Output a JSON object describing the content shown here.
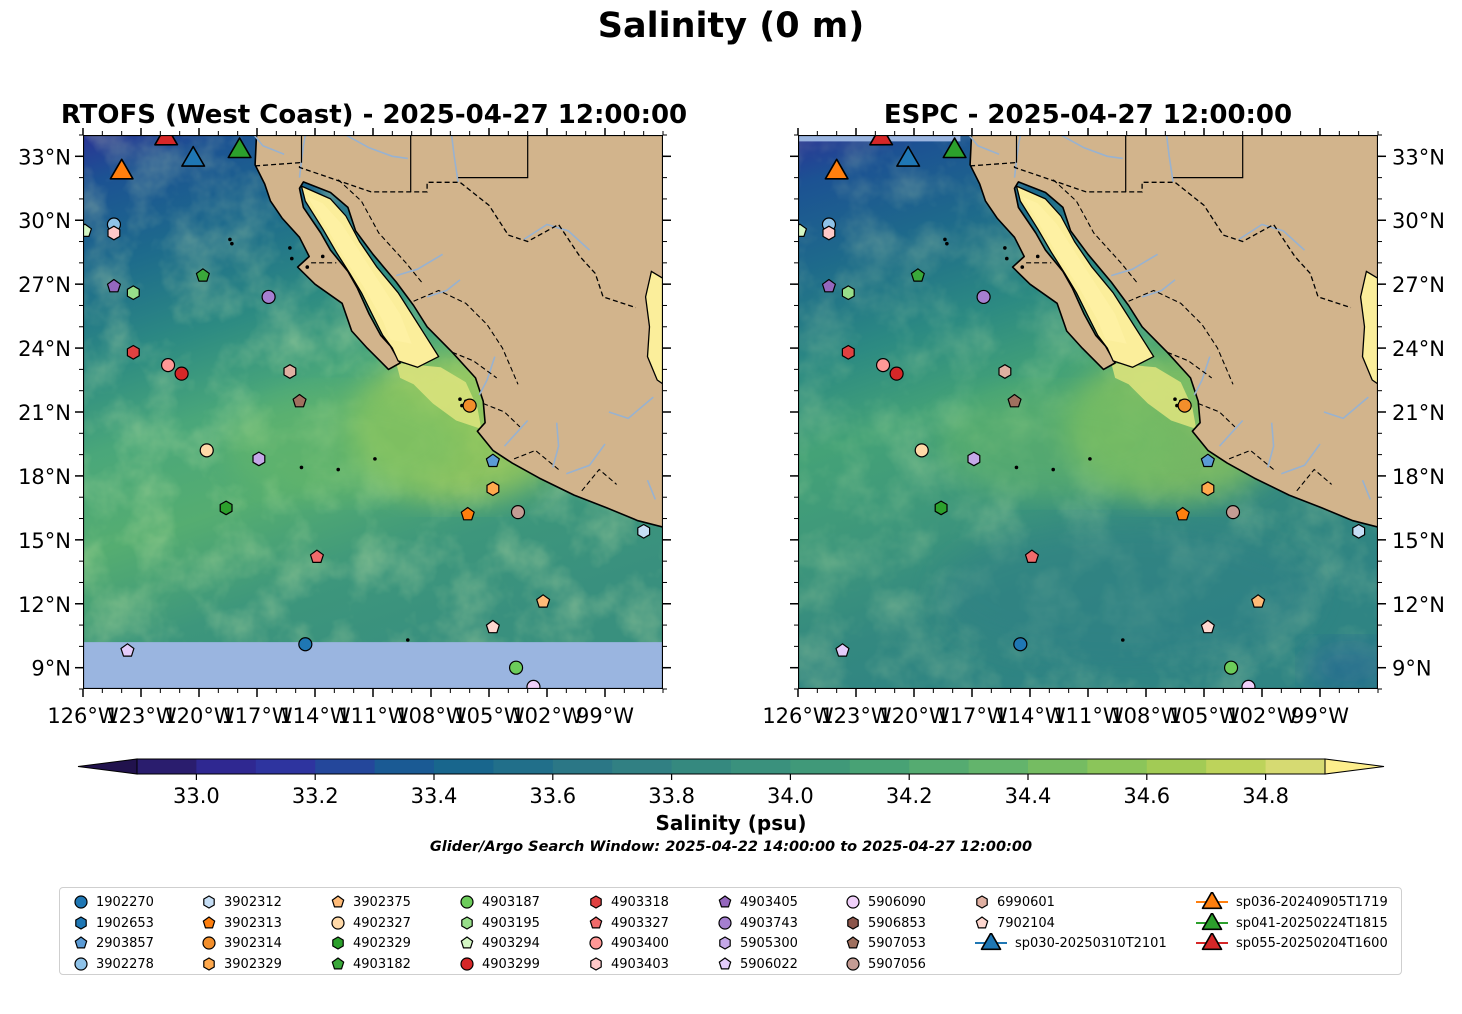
{
  "title": "Salinity (0 m)",
  "panels": [
    {
      "title": "RTOFS (West Coast) - 2025-04-27 12:00:00",
      "lat_axis_side": "left"
    },
    {
      "title": "ESPC - 2025-04-27 12:00:00",
      "lat_axis_side": "right"
    }
  ],
  "map_extent": {
    "lon": [
      -126,
      -96
    ],
    "lat": [
      8,
      34
    ]
  },
  "lon_ticks": [
    "126°W",
    "123°W",
    "120°W",
    "117°W",
    "114°W",
    "111°W",
    "108°W",
    "105°W",
    "102°W",
    "99°W"
  ],
  "lat_ticks": [
    "33°N",
    "30°N",
    "27°N",
    "24°N",
    "21°N",
    "18°N",
    "15°N",
    "12°N",
    "9°N"
  ],
  "colors": {
    "land": "#d2b48c",
    "no_data": "#9ab5e0",
    "gulf_fresh": "#fbee9b",
    "boundary": "#000000"
  },
  "colorbar": {
    "label": "Salinity (psu)",
    "range": [
      32.9,
      34.9
    ],
    "extend": "both",
    "ticks": [
      "33.0",
      "33.2",
      "33.4",
      "33.6",
      "33.8",
      "34.0",
      "34.2",
      "34.4",
      "34.6",
      "34.8"
    ],
    "colors": [
      "#2a1d6e",
      "#2f2891",
      "#2e349f",
      "#24479b",
      "#1a5a94",
      "#18668d",
      "#216f8a",
      "#2b7786",
      "#318083",
      "#35897f",
      "#3a917d",
      "#409979",
      "#48a275",
      "#55ab71",
      "#63b46c",
      "#75bc62",
      "#8bc55a",
      "#a2cb55",
      "#bdd35b",
      "#d6da72"
    ]
  },
  "search_window": "Glider/Argo Search Window: 2025-04-22 14:00:00 to 2025-04-27 12:00:00",
  "platforms": [
    {
      "id": "1902270",
      "marker": "circle",
      "color": "#1f77b4",
      "lat": 10.1,
      "lon": -114.5
    },
    {
      "id": "1902653",
      "marker": "hexagon",
      "color": "#1f77b4",
      "lat": null,
      "lon": null
    },
    {
      "id": "2903857",
      "marker": "pentagon",
      "color": "#5b9bd5",
      "lat": 18.7,
      "lon": -104.8
    },
    {
      "id": "3902278",
      "marker": "circle",
      "color": "#8ec2e8",
      "lat": 29.8,
      "lon": -124.4
    },
    {
      "id": "3902312",
      "marker": "hexagon",
      "color": "#c6def5",
      "lat": 15.4,
      "lon": -97.0
    },
    {
      "id": "3902313",
      "marker": "pentagon",
      "color": "#ff7f0e",
      "lat": 16.2,
      "lon": -106.1
    },
    {
      "id": "3902314",
      "marker": "circle",
      "color": "#f28e2b",
      "lat": 21.3,
      "lon": -106.0
    },
    {
      "id": "3902329",
      "marker": "hexagon",
      "color": "#ffa94d",
      "lat": 17.4,
      "lon": -104.8
    },
    {
      "id": "3902375",
      "marker": "pentagon",
      "color": "#ffbb78",
      "lat": 12.1,
      "lon": -102.2
    },
    {
      "id": "4902327",
      "marker": "circle",
      "color": "#ffd9a8",
      "lat": 19.2,
      "lon": -119.6
    },
    {
      "id": "4902329",
      "marker": "hexagon",
      "color": "#2ca02c",
      "lat": 16.5,
      "lon": -118.6
    },
    {
      "id": "4903182",
      "marker": "pentagon",
      "color": "#3aa83a",
      "lat": 27.4,
      "lon": -119.8
    },
    {
      "id": "4903187",
      "marker": "circle",
      "color": "#6ccc5a",
      "lat": 9.0,
      "lon": -103.6
    },
    {
      "id": "4903195",
      "marker": "hexagon",
      "color": "#98df8a",
      "lat": 26.6,
      "lon": -123.4
    },
    {
      "id": "4903294",
      "marker": "pentagon",
      "color": "#d4f7c4",
      "lat": 29.5,
      "lon": -125.9
    },
    {
      "id": "4903299",
      "marker": "circle",
      "color": "#d62728",
      "lat": 22.8,
      "lon": -120.9
    },
    {
      "id": "4903318",
      "marker": "hexagon",
      "color": "#e04141",
      "lat": 23.8,
      "lon": -123.4
    },
    {
      "id": "4903327",
      "marker": "pentagon",
      "color": "#f06b6b",
      "lat": 14.2,
      "lon": -113.9
    },
    {
      "id": "4903400",
      "marker": "circle",
      "color": "#ff9896",
      "lat": 23.2,
      "lon": -121.6
    },
    {
      "id": "4903403",
      "marker": "hexagon",
      "color": "#ffc9c8",
      "lat": 29.4,
      "lon": -124.4
    },
    {
      "id": "4903405",
      "marker": "pentagon",
      "color": "#9467bd",
      "lat": 26.9,
      "lon": -124.4
    },
    {
      "id": "4903743",
      "marker": "circle",
      "color": "#a57fd0",
      "lat": 26.4,
      "lon": -116.4
    },
    {
      "id": "5905300",
      "marker": "hexagon",
      "color": "#c5a8e8",
      "lat": 18.8,
      "lon": -116.9
    },
    {
      "id": "5906022",
      "marker": "pentagon",
      "color": "#e4ccfb",
      "lat": 9.8,
      "lon": -123.7
    },
    {
      "id": "5906090",
      "marker": "circle",
      "color": "#f0d0fa",
      "lat": 8.1,
      "lon": -102.7
    },
    {
      "id": "5906853",
      "marker": "hexagon",
      "color": "#8c564b",
      "lat": null,
      "lon": null
    },
    {
      "id": "5907053",
      "marker": "pentagon",
      "color": "#a0705f",
      "lat": 21.5,
      "lon": -114.8
    },
    {
      "id": "5907056",
      "marker": "circle",
      "color": "#c49c94",
      "lat": 16.3,
      "lon": -103.5
    },
    {
      "id": "6990601",
      "marker": "hexagon",
      "color": "#e0b0a2",
      "lat": 22.9,
      "lon": -115.3
    },
    {
      "id": "7902104",
      "marker": "pentagon",
      "color": "#ffd8d0",
      "lat": 10.9,
      "lon": -104.8
    }
  ],
  "gliders": [
    {
      "id": "sp030-20250310T2101",
      "color": "#1f77b4",
      "lat": 33.0,
      "lon": -120.3
    },
    {
      "id": "sp036-20240905T1719",
      "color": "#ff7f0e",
      "lat": 32.4,
      "lon": -124.0
    },
    {
      "id": "sp041-20250224T1815",
      "color": "#2ca02c",
      "lat": 33.4,
      "lon": -117.9
    },
    {
      "id": "sp055-20250204T1600",
      "color": "#d62728",
      "lat": 34.0,
      "lon": -121.7
    }
  ]
}
